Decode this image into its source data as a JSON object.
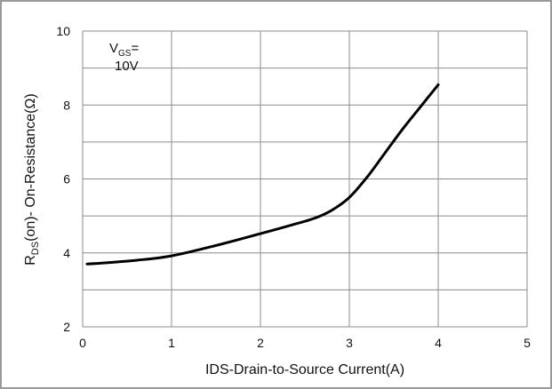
{
  "chart_data": {
    "type": "line",
    "xlabel": "IDS-Drain-to-Source  Current(A)",
    "ylabel": "RDS(on)- On-Resistance(Ω)",
    "ylabel_parts": {
      "main": "R",
      "sub": "DS",
      "rest": "(on)- On-Resistance(Ω)"
    },
    "xlim": [
      0,
      5
    ],
    "ylim": [
      2,
      10
    ],
    "xticks": [
      "0",
      "1",
      "2",
      "3",
      "4",
      "5"
    ],
    "yticks": [
      "2",
      "4",
      "6",
      "8",
      "10"
    ],
    "grid": true,
    "annotation": {
      "main": "V",
      "sub": "GS",
      "rest": "=",
      "line2": "10V"
    },
    "series": [
      {
        "x": [
          0.05,
          0.3,
          0.6,
          1.0,
          1.5,
          2.0,
          2.3,
          2.6,
          2.8,
          3.0,
          3.2,
          3.4,
          3.6,
          3.8,
          4.0
        ],
        "y": [
          3.7,
          3.74,
          3.8,
          3.92,
          4.2,
          4.52,
          4.72,
          4.93,
          5.15,
          5.5,
          6.05,
          6.7,
          7.35,
          7.95,
          8.55
        ]
      }
    ],
    "line_color": "#000000"
  }
}
